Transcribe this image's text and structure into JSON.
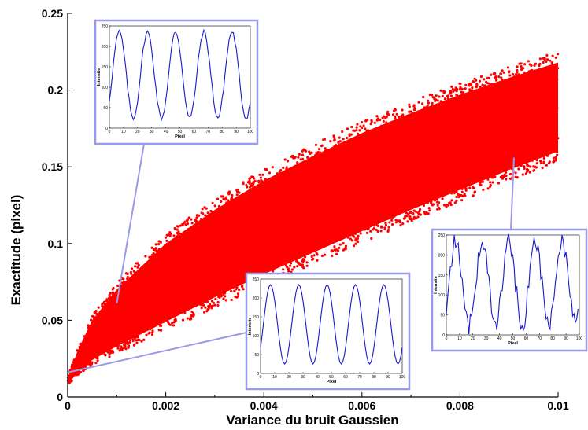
{
  "chart_data": {
    "type": "scatter",
    "xlabel": "Variance du bruit Gaussien",
    "ylabel": "Exactitude (pixel)",
    "xlim": [
      0,
      0.01
    ],
    "ylim": [
      0,
      0.25
    ],
    "x_ticks": [
      "0",
      "0.002",
      "0.004",
      "0.006",
      "0.008",
      "0.01"
    ],
    "y_ticks": [
      "0",
      "0.05",
      "0.1",
      "0.15",
      "0.2",
      "0.25"
    ],
    "marker_color": "#ff0000",
    "series": [
      {
        "x": [
          0,
          0.0002,
          0.0005,
          0.001,
          0.0015,
          0.002,
          0.003,
          0.004,
          0.005,
          0.006,
          0.007,
          0.008,
          0.009,
          0.01
        ],
        "lower": [
          0.008,
          0.016,
          0.024,
          0.033,
          0.041,
          0.049,
          0.065,
          0.08,
          0.094,
          0.108,
          0.122,
          0.135,
          0.148,
          0.16
        ],
        "upper": [
          0.012,
          0.03,
          0.05,
          0.07,
          0.085,
          0.1,
          0.122,
          0.141,
          0.157,
          0.172,
          0.185,
          0.197,
          0.208,
          0.218
        ]
      }
    ],
    "insets": [
      {
        "x_label": "Pixel",
        "y_label": "Intensite",
        "x_ticks": [
          "0",
          "10",
          "20",
          "30",
          "40",
          "50",
          "60",
          "70",
          "80",
          "90",
          "100"
        ],
        "y_ticks": [
          "0",
          "50",
          "100",
          "150",
          "200",
          "250"
        ],
        "noise": 0.0002,
        "points_to": [
          0.001,
          0.061
        ]
      },
      {
        "x_label": "Pixel",
        "y_label": "Intensite",
        "x_ticks": [
          "0",
          "10",
          "20",
          "30",
          "40",
          "50",
          "60",
          "70",
          "80",
          "90",
          "100"
        ],
        "y_ticks": [
          "0",
          "50",
          "100",
          "150",
          "200",
          "250"
        ],
        "noise": 0,
        "points_to": [
          0,
          0.016
        ]
      },
      {
        "x_label": "Pixel",
        "y_label": "Intensite",
        "x_ticks": [
          "0",
          "10",
          "20",
          "30",
          "40",
          "50",
          "60",
          "70",
          "80",
          "90",
          "100"
        ],
        "y_ticks": [
          "0",
          "50",
          "100",
          "150",
          "200",
          "250"
        ],
        "noise": 0.0008,
        "points_to": [
          0.0091,
          0.156
        ]
      }
    ],
    "inset_color": "#9a9ae8",
    "curve_color": "#1a1acc"
  }
}
